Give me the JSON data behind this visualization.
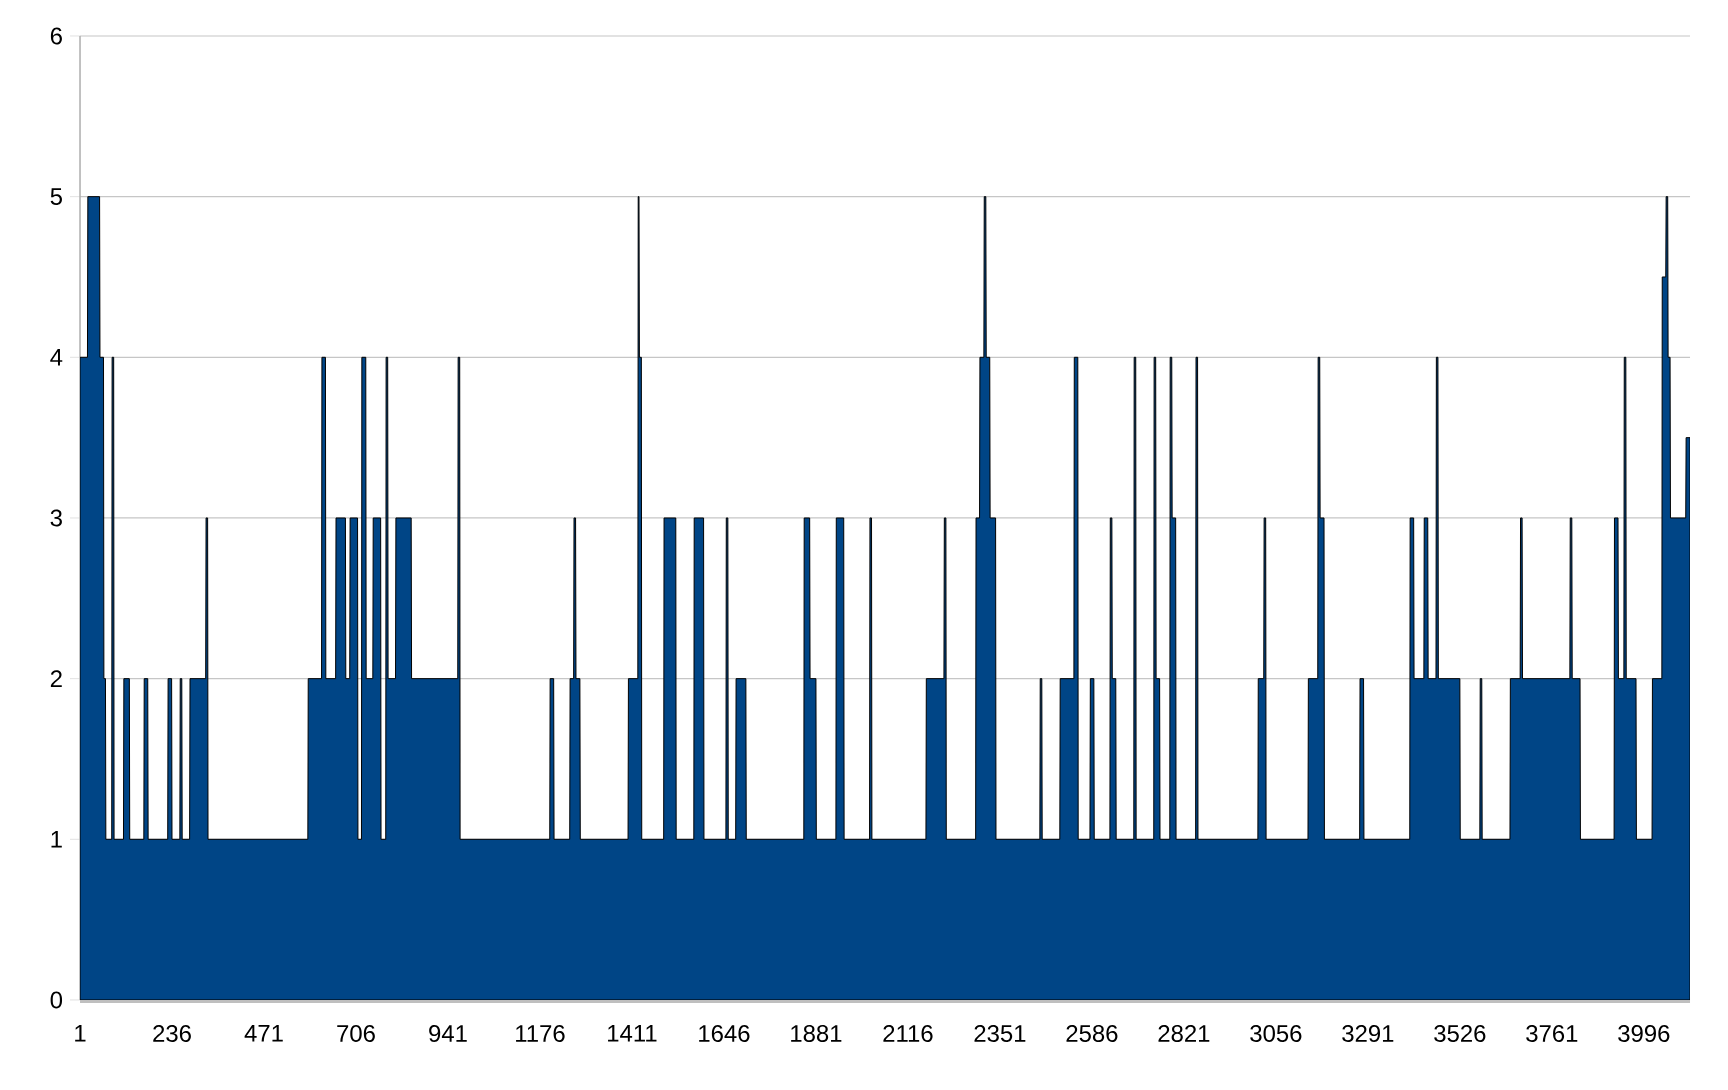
{
  "chart_data": {
    "type": "area",
    "xlim": [
      1,
      4114
    ],
    "xticks": [
      1,
      236,
      471,
      706,
      941,
      1176,
      1411,
      1646,
      1881,
      2116,
      2351,
      2586,
      2821,
      3056,
      3291,
      3526,
      3761,
      3996
    ],
    "ylim": [
      0,
      6
    ],
    "yticks": [
      0,
      1,
      2,
      3,
      4,
      5,
      6
    ],
    "grid": "y",
    "series": [
      {
        "color": "#004586",
        "x": [
          1,
          20,
          21,
          51,
          52,
          61,
          62,
          66,
          67,
          82,
          83,
          87,
          88,
          112,
          113,
          127,
          128,
          164,
          165,
          174,
          175,
          225,
          226,
          235,
          236,
          256,
          257,
          261,
          262,
          281,
          282,
          322,
          323,
          327,
          328,
          583,
          584,
          618,
          619,
          628,
          629,
          654,
          655,
          679,
          680,
          690,
          691,
          710,
          711,
          720,
          721,
          731,
          732,
          749,
          750,
          769,
          770,
          782,
          783,
          787,
          788,
          807,
          808,
          847,
          848,
          966,
          967,
          971,
          972,
          1201,
          1202,
          1211,
          1212,
          1252,
          1253,
          1262,
          1263,
          1267,
          1268,
          1278,
          1279,
          1401,
          1402,
          1426,
          1427,
          1429,
          1430,
          1435,
          1436,
          1492,
          1493,
          1523,
          1524,
          1569,
          1570,
          1594,
          1595,
          1651,
          1652,
          1656,
          1657,
          1676,
          1677,
          1702,
          1703,
          1850,
          1851,
          1865,
          1866,
          1881,
          1882,
          1932,
          1933,
          1952,
          1953,
          2018,
          2019,
          2023,
          2024,
          2162,
          2163,
          2208,
          2209,
          2213,
          2214,
          2289,
          2290,
          2299,
          2300,
          2310,
          2311,
          2315,
          2316,
          2325,
          2326,
          2340,
          2341,
          2453,
          2454,
          2458,
          2459,
          2504,
          2505,
          2540,
          2541,
          2550,
          2551,
          2581,
          2582,
          2591,
          2592,
          2632,
          2633,
          2637,
          2638,
          2647,
          2648,
          2693,
          2694,
          2698,
          2699,
          2744,
          2745,
          2749,
          2750,
          2759,
          2760,
          2785,
          2786,
          2790,
          2791,
          2800,
          2801,
          2851,
          2852,
          2856,
          2857,
          3010,
          3011,
          3025,
          3026,
          3030,
          3031,
          3138,
          3139,
          3163,
          3164,
          3168,
          3169,
          3179,
          3180,
          3270,
          3271,
          3280,
          3281,
          3398,
          3399,
          3408,
          3409,
          3434,
          3435,
          3444,
          3445,
          3465,
          3466,
          3470,
          3471,
          3526,
          3527,
          3577,
          3578,
          3582,
          3583,
          3654,
          3655,
          3680,
          3681,
          3685,
          3686,
          3807,
          3808,
          3812,
          3813,
          3833,
          3834,
          3920,
          3921,
          3930,
          3931,
          3945,
          3946,
          3950,
          3951,
          3976,
          3977,
          4017,
          4018,
          4042,
          4043,
          4052,
          4053,
          4057,
          4058,
          4063,
          4064,
          4103,
          4104,
          4114
        ],
        "values": [
          4,
          4,
          5,
          5,
          4,
          4,
          2,
          2,
          1,
          1,
          4,
          4,
          1,
          1,
          2,
          2,
          1,
          1,
          2,
          2,
          1,
          1,
          2,
          2,
          1,
          1,
          2,
          2,
          1,
          1,
          2,
          2,
          3,
          3,
          1,
          1,
          2,
          2,
          4,
          4,
          2,
          2,
          3,
          3,
          2,
          2,
          3,
          3,
          1,
          1,
          4,
          4,
          2,
          2,
          3,
          3,
          1,
          1,
          4,
          4,
          2,
          2,
          3,
          3,
          2,
          2,
          4,
          4,
          1,
          1,
          2,
          2,
          1,
          1,
          2,
          2,
          3,
          3,
          2,
          2,
          1,
          1,
          2,
          2,
          5,
          5,
          4,
          4,
          1,
          1,
          3,
          3,
          1,
          1,
          3,
          3,
          1,
          1,
          3,
          3,
          1,
          1,
          2,
          2,
          1,
          1,
          3,
          3,
          2,
          2,
          1,
          1,
          3,
          3,
          1,
          1,
          3,
          3,
          1,
          1,
          2,
          2,
          3,
          3,
          1,
          1,
          3,
          3,
          4,
          4,
          5,
          5,
          4,
          4,
          3,
          3,
          1,
          1,
          2,
          2,
          1,
          1,
          2,
          2,
          4,
          4,
          1,
          1,
          2,
          2,
          1,
          1,
          3,
          3,
          2,
          2,
          1,
          1,
          4,
          4,
          1,
          1,
          4,
          4,
          2,
          2,
          1,
          1,
          4,
          4,
          3,
          3,
          1,
          1,
          4,
          4,
          1,
          1,
          2,
          2,
          3,
          3,
          1,
          1,
          2,
          2,
          4,
          4,
          3,
          3,
          1,
          1,
          2,
          2,
          1,
          1,
          3,
          3,
          2,
          2,
          3,
          3,
          2,
          2,
          4,
          4,
          2,
          2,
          1,
          1,
          2,
          2,
          1,
          1,
          2,
          2,
          3,
          3,
          2,
          2,
          3,
          3,
          2,
          2,
          1,
          1,
          3,
          3,
          2,
          2,
          4,
          4,
          2,
          2,
          1,
          1,
          2,
          2,
          4.5,
          4.5,
          5,
          5,
          4,
          4,
          3,
          3,
          3.5,
          3.5
        ]
      }
    ]
  }
}
